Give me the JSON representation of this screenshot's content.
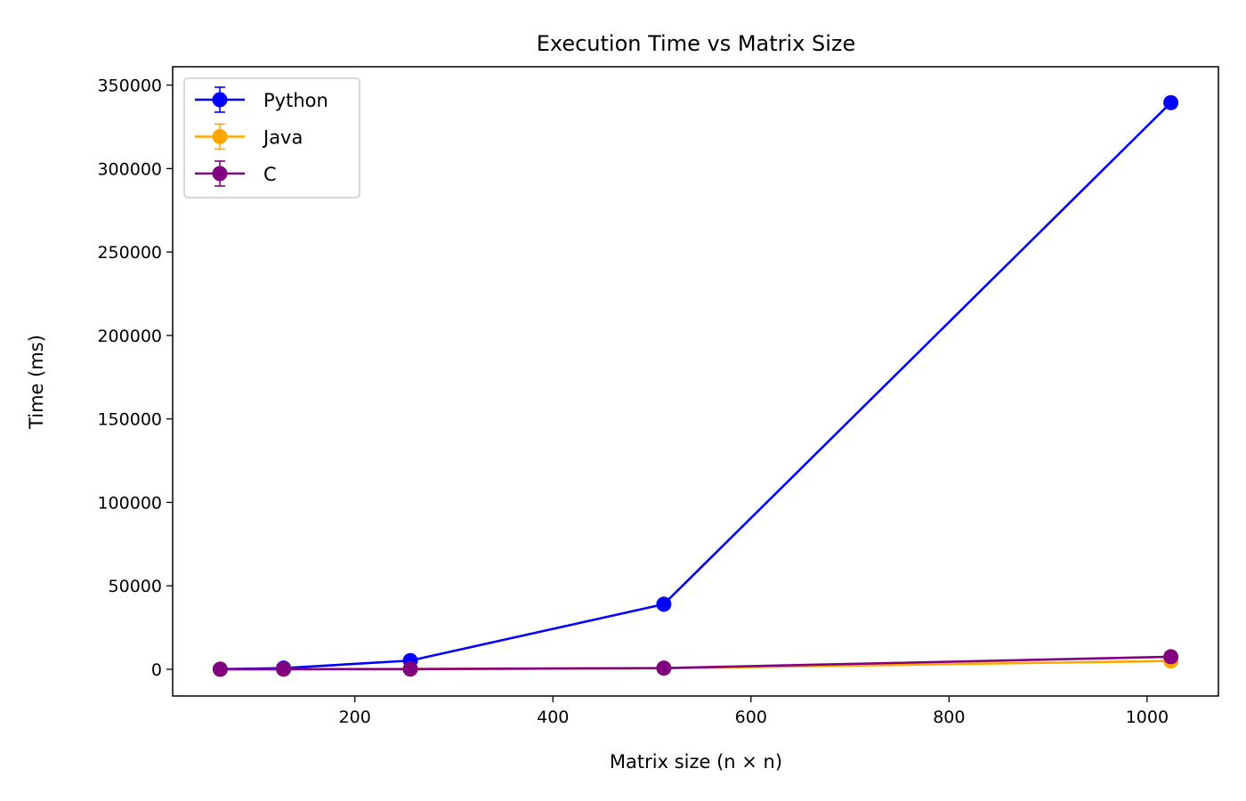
{
  "chart_data": {
    "type": "line",
    "title": "Execution Time vs Matrix Size",
    "xlabel": "Matrix size (n × n)",
    "ylabel": "Time (ms)",
    "x": [
      64,
      128,
      256,
      512,
      1024
    ],
    "xlim": [
      16,
      1072
    ],
    "ylim": [
      -16000,
      361000
    ],
    "xticks": [
      200,
      400,
      600,
      800,
      1000
    ],
    "yticks": [
      0,
      50000,
      100000,
      150000,
      200000,
      250000,
      300000,
      350000
    ],
    "grid": false,
    "legend_position": "top-left",
    "error_bars": true,
    "series": [
      {
        "name": "Python",
        "color": "#0000ff",
        "values": [
          100,
          700,
          5200,
          39000,
          339500
        ],
        "errors": [
          50,
          100,
          300,
          800,
          2500
        ]
      },
      {
        "name": "Java",
        "color": "#ffa500",
        "values": [
          20,
          60,
          150,
          600,
          5000
        ],
        "errors": [
          5,
          10,
          20,
          50,
          200
        ]
      },
      {
        "name": "C",
        "color": "#800080",
        "values": [
          10,
          40,
          120,
          700,
          7500
        ],
        "errors": [
          5,
          10,
          20,
          50,
          200
        ]
      }
    ]
  }
}
